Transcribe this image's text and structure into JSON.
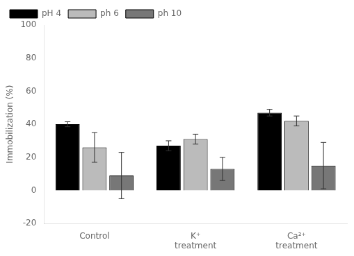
{
  "chart_data": {
    "type": "bar",
    "categories": [
      "Control",
      "K⁺\ntreatment",
      "Ca²⁺\ntreatment"
    ],
    "series": [
      {
        "name": "pH 4",
        "color": "#000000",
        "values": [
          40,
          27,
          47
        ],
        "errors": [
          1.5,
          3,
          2
        ]
      },
      {
        "name": "ph 6",
        "color": "#bbbbbb",
        "values": [
          26,
          31,
          42
        ],
        "errors": [
          9,
          3,
          3
        ]
      },
      {
        "name": "ph 10",
        "color": "#777777",
        "values": [
          9,
          13,
          15
        ],
        "errors": [
          14,
          7,
          14
        ]
      }
    ],
    "ylabel": "Immobilization (%)",
    "ylim": [
      -20,
      100
    ],
    "yticks": [
      -20,
      0,
      20,
      40,
      60,
      80,
      100
    ],
    "grid": false,
    "legend": "upper left"
  }
}
